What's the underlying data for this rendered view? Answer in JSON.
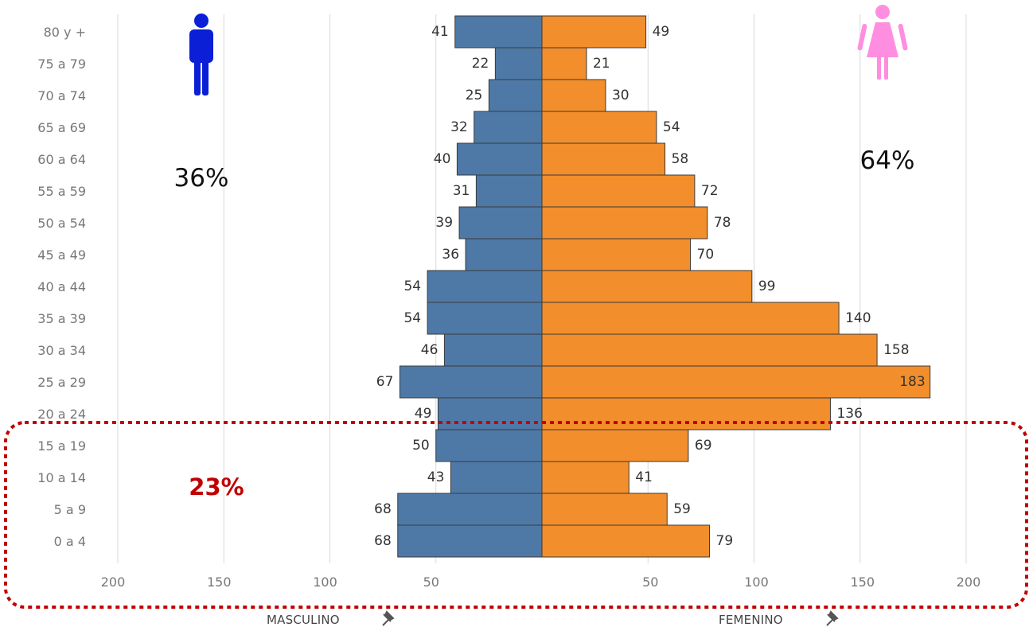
{
  "colors": {
    "male": "#4e79a7",
    "female": "#f28e2b",
    "male_icon": "#0a1fd6",
    "female_icon": "#ff8ee0",
    "highlight_border": "#c00000",
    "highlight_text": "#c00000"
  },
  "icons": {
    "male": "male-figure-icon",
    "female": "female-figure-icon",
    "pin": "pin-icon"
  },
  "chart_data": {
    "type": "bar",
    "orientation": "horizontal-population-pyramid",
    "categories": [
      "80 y +",
      "75 a 79",
      "70 a 74",
      "65 a 69",
      "60 a 64",
      "55 a 59",
      "50 a 54",
      "45 a 49",
      "40 a 44",
      "35 a 39",
      "30 a 34",
      "25 a 29",
      "20 a 24",
      "15 a 19",
      "10 a 14",
      "5 a 9",
      "0 a 4"
    ],
    "series": [
      {
        "name": "MASCULINO",
        "values": [
          41,
          22,
          25,
          32,
          40,
          31,
          39,
          36,
          54,
          54,
          46,
          67,
          49,
          50,
          43,
          68,
          68
        ]
      },
      {
        "name": "FEMENINO",
        "values": [
          49,
          21,
          30,
          54,
          58,
          72,
          78,
          70,
          99,
          140,
          158,
          183,
          136,
          69,
          41,
          59,
          79
        ]
      }
    ],
    "xlim_left": [
      200,
      0
    ],
    "xlim_right": [
      0,
      200
    ],
    "x_ticks_left": [
      "200",
      "150",
      "100",
      "50"
    ],
    "x_ticks_right": [
      "50",
      "100",
      "150",
      "200"
    ],
    "x_tick_values": [
      200,
      150,
      100,
      50
    ],
    "grid": "vertical",
    "annotations": {
      "male_percent": "36%",
      "female_percent": "64%",
      "highlight_percent": "23%"
    },
    "highlight_group": [
      "15 a 19",
      "10 a 14",
      "5 a 9",
      "0 a 4"
    ],
    "axis_titles": {
      "left": "MASCULINO",
      "right": "FEMENINO"
    }
  }
}
